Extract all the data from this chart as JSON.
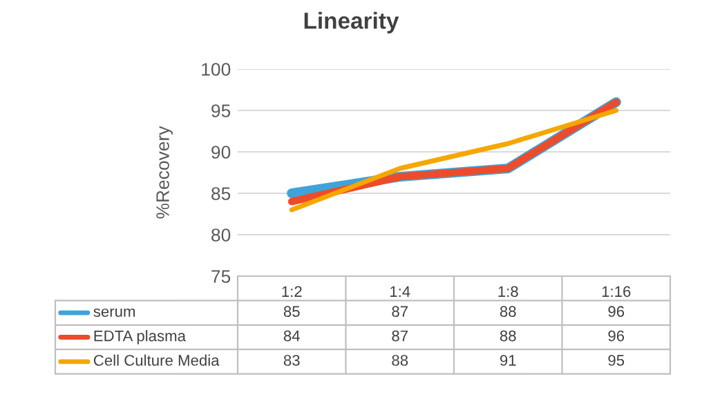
{
  "chart_data": {
    "type": "line",
    "title": "Linearity",
    "ylabel": "%Recovery",
    "categories": [
      "1:2",
      "1:4",
      "1:8",
      "1:16"
    ],
    "series": [
      {
        "name": "serum",
        "color": "#3fa3d8",
        "values": [
          85,
          87,
          88,
          96
        ]
      },
      {
        "name": "EDTA plasma",
        "color": "#ee4b2b",
        "values": [
          84,
          87,
          88,
          96
        ]
      },
      {
        "name": "Cell Culture Media",
        "color": "#f5a700",
        "values": [
          83,
          88,
          91,
          95
        ]
      }
    ],
    "ylim": [
      75,
      100
    ],
    "yticks": [
      75,
      80,
      85,
      90,
      95,
      100
    ],
    "grid": "y",
    "legend": "bottom",
    "data_labels": true,
    "marker": "none",
    "line_style": "solid"
  }
}
